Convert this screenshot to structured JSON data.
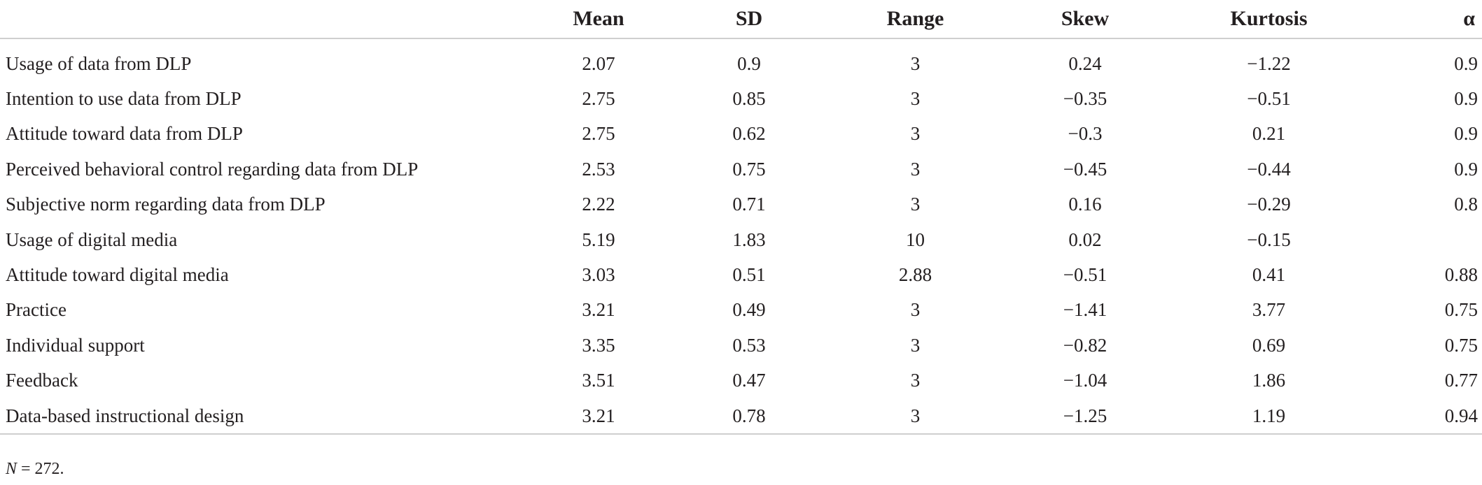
{
  "table": {
    "headers": [
      "",
      "Mean",
      "SD",
      "Range",
      "Skew",
      "Kurtosis",
      "α"
    ],
    "rows": [
      [
        "Usage of data from DLP",
        "2.07",
        "0.9",
        "3",
        "0.24",
        "−1.22",
        "0.9"
      ],
      [
        "Intention to use data from DLP",
        "2.75",
        "0.85",
        "3",
        "−0.35",
        "−0.51",
        "0.9"
      ],
      [
        "Attitude toward data from DLP",
        "2.75",
        "0.62",
        "3",
        "−0.3",
        "0.21",
        "0.9"
      ],
      [
        "Perceived behavioral control regarding data from DLP",
        "2.53",
        "0.75",
        "3",
        "−0.45",
        "−0.44",
        "0.9"
      ],
      [
        "Subjective norm regarding data from DLP",
        "2.22",
        "0.71",
        "3",
        "0.16",
        "−0.29",
        "0.8"
      ],
      [
        "Usage of digital media",
        "5.19",
        "1.83",
        "10",
        "0.02",
        "−0.15",
        ""
      ],
      [
        "Attitude toward digital media",
        "3.03",
        "0.51",
        "2.88",
        "−0.51",
        "0.41",
        "0.88"
      ],
      [
        "Practice",
        "3.21",
        "0.49",
        "3",
        "−1.41",
        "3.77",
        "0.75"
      ],
      [
        "Individual support",
        "3.35",
        "0.53",
        "3",
        "−0.82",
        "0.69",
        "0.75"
      ],
      [
        "Feedback",
        "3.51",
        "0.47",
        "3",
        "−1.04",
        "1.86",
        "0.77"
      ],
      [
        "Data-based instructional design",
        "3.21",
        "0.78",
        "3",
        "−1.25",
        "1.19",
        "0.94"
      ]
    ]
  },
  "footnote": {
    "variable": "N",
    "text": " = 272."
  }
}
